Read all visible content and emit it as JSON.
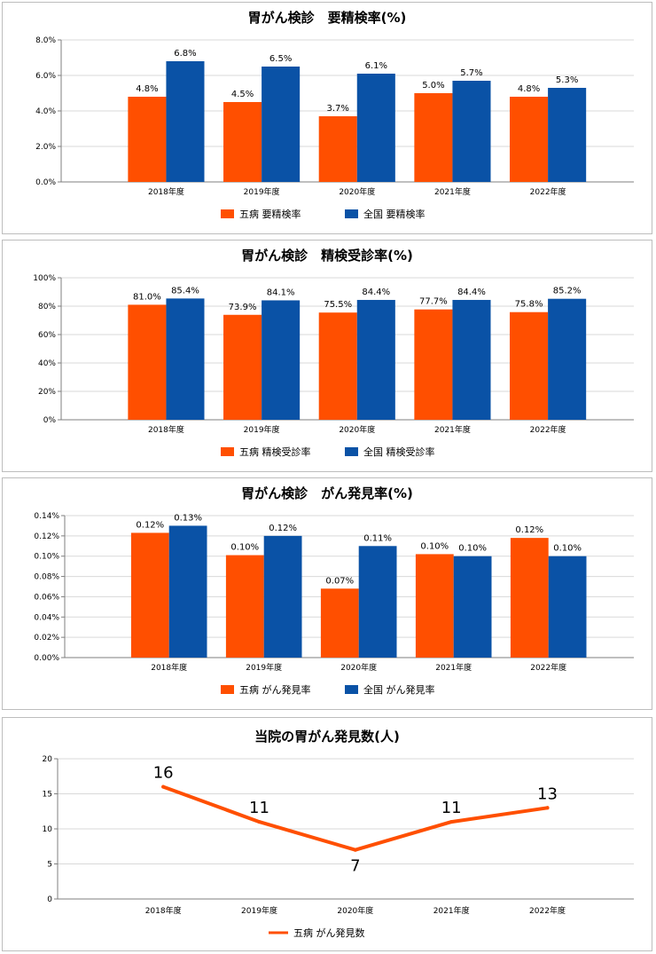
{
  "colors": {
    "gobyo": "#ff4f00",
    "zenkoku": "#0a52a6",
    "grid": "#d9d9d9",
    "axis": "#7f7f7f"
  },
  "chart_data": [
    {
      "type": "bar",
      "title": "胃がん検診　要精検率(%)",
      "categories": [
        "2018年度",
        "2019年度",
        "2020年度",
        "2021年度",
        "2022年度"
      ],
      "ylim": [
        0,
        8
      ],
      "yticks": [
        "0.0%",
        "2.0%",
        "4.0%",
        "6.0%",
        "8.0%"
      ],
      "grid": true,
      "legend": "bottom",
      "series": [
        {
          "name": "五病 要精検率",
          "values": [
            4.8,
            4.5,
            3.7,
            5.0,
            4.8
          ],
          "labels": [
            "4.8%",
            "4.5%",
            "3.7%",
            "5.0%",
            "4.8%"
          ]
        },
        {
          "name": "全国 要精検率",
          "values": [
            6.8,
            6.5,
            6.1,
            5.7,
            5.3
          ],
          "labels": [
            "6.8%",
            "6.5%",
            "6.1%",
            "5.7%",
            "5.3%"
          ]
        }
      ]
    },
    {
      "type": "bar",
      "title": "胃がん検診　精検受診率(%)",
      "categories": [
        "2018年度",
        "2019年度",
        "2020年度",
        "2021年度",
        "2022年度"
      ],
      "ylim": [
        0,
        100
      ],
      "yticks": [
        "0%",
        "20%",
        "40%",
        "60%",
        "80%",
        "100%"
      ],
      "grid": true,
      "legend": "bottom",
      "series": [
        {
          "name": "五病 精検受診率",
          "values": [
            81.0,
            73.9,
            75.5,
            77.7,
            75.8
          ],
          "labels": [
            "81.0%",
            "73.9%",
            "75.5%",
            "77.7%",
            "75.8%"
          ]
        },
        {
          "name": "全国 精検受診率",
          "values": [
            85.4,
            84.1,
            84.4,
            84.4,
            85.2
          ],
          "labels": [
            "85.4%",
            "84.1%",
            "84.4%",
            "84.4%",
            "85.2%"
          ]
        }
      ]
    },
    {
      "type": "bar",
      "title": "胃がん検診　がん発見率(%)",
      "categories": [
        "2018年度",
        "2019年度",
        "2020年度",
        "2021年度",
        "2022年度"
      ],
      "ylim": [
        0,
        0.14
      ],
      "yticks": [
        "0.00%",
        "0.02%",
        "0.04%",
        "0.06%",
        "0.08%",
        "0.10%",
        "0.12%",
        "0.14%"
      ],
      "grid": true,
      "legend": "bottom",
      "series": [
        {
          "name": "五病 がん発見率",
          "values": [
            0.123,
            0.101,
            0.068,
            0.102,
            0.118
          ],
          "labels": [
            "0.12%",
            "0.10%",
            "0.07%",
            "0.10%",
            "0.12%"
          ]
        },
        {
          "name": "全国 がん発見率",
          "values": [
            0.13,
            0.12,
            0.11,
            0.1,
            0.1
          ],
          "labels": [
            "0.13%",
            "0.12%",
            "0.11%",
            "0.10%",
            "0.10%"
          ]
        }
      ]
    },
    {
      "type": "line",
      "title": "当院の胃がん発見数(人)",
      "categories": [
        "2018年度",
        "2019年度",
        "2020年度",
        "2021年度",
        "2022年度"
      ],
      "ylim": [
        0,
        20
      ],
      "yticks": [
        "0",
        "5",
        "10",
        "15",
        "20"
      ],
      "grid": true,
      "legend": "bottom",
      "series": [
        {
          "name": "五病 がん発見数",
          "values": [
            16,
            11,
            7,
            11,
            13
          ],
          "labels": [
            "16",
            "11",
            "7",
            "11",
            "13"
          ]
        }
      ]
    }
  ]
}
